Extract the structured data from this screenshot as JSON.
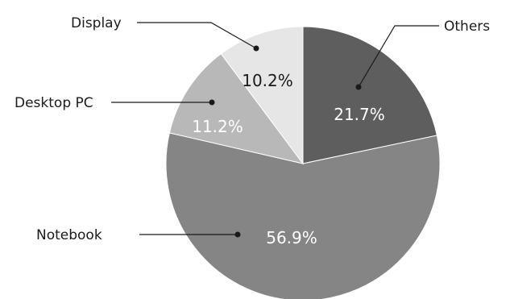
{
  "chart_data": {
    "type": "pie",
    "title": "",
    "categories": [
      "Others",
      "Notebook",
      "Desktop PC",
      "Display"
    ],
    "values": [
      21.7,
      56.9,
      11.2,
      10.2
    ],
    "labels": [
      "21.7%",
      "56.9%",
      "11.2%",
      "10.2%"
    ],
    "colors": [
      "#5e5e5e",
      "#858585",
      "#b8b8b8",
      "#e6e6e6"
    ],
    "label_colors": [
      "#ffffff",
      "#ffffff",
      "#ffffff",
      "#1a1a1a"
    ],
    "start": "12 o'clock",
    "direction": "clockwise",
    "legend": "callout labels with leader lines"
  }
}
